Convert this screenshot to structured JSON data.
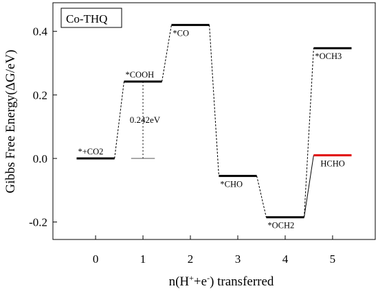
{
  "chart_data": {
    "type": "line",
    "legend_box": "Co-THQ",
    "ylabel": "Gibbs Free Energy(ΔG/eV)",
    "xlabel": "n(H⁺+e⁻) transferred",
    "xlim": [
      -0.9,
      5.9
    ],
    "ylim": [
      -0.255,
      0.49
    ],
    "x_ticks": [
      0,
      1,
      2,
      3,
      4,
      5
    ],
    "y_ticks": [
      {
        "v": 0.4,
        "label": "0.4"
      },
      {
        "v": 0.2,
        "label": "0.2"
      },
      {
        "v": 0.0,
        "label": "0.0"
      },
      {
        "v": -0.2,
        "label": "-0.2"
      }
    ],
    "steps": [
      {
        "x": 0,
        "y": 0.0,
        "label": "*+CO2",
        "color": "#000000"
      },
      {
        "x": 1,
        "y": 0.242,
        "label": "*COOH",
        "color": "#000000"
      },
      {
        "x": 2,
        "y": 0.42,
        "label": "*CO",
        "color": "#000000"
      },
      {
        "x": 3,
        "y": -0.055,
        "label": "*CHO",
        "color": "#000000"
      },
      {
        "x": 4,
        "y": -0.185,
        "label": "*OCH2",
        "color": "#000000"
      },
      {
        "x": 5,
        "y": 0.347,
        "label": "*OCH3",
        "color": "#000000"
      },
      {
        "x": 5,
        "y": 0.01,
        "label": "HCHO",
        "color": "#e00000"
      }
    ],
    "annotation": {
      "label": "0.242eV",
      "x": 1,
      "y_from": 0.0,
      "y_to": 0.242
    }
  }
}
